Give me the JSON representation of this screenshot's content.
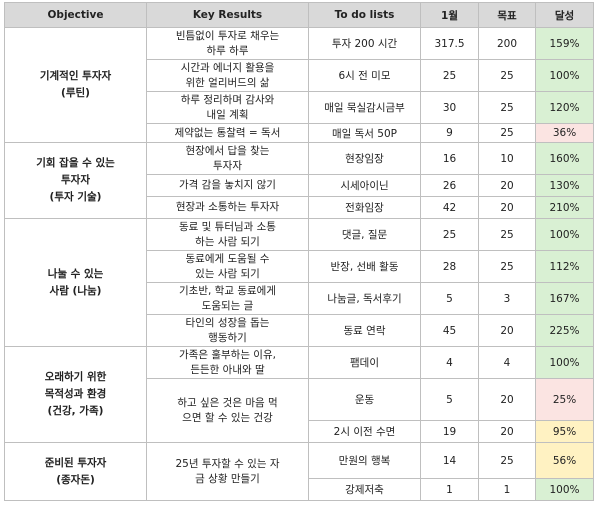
{
  "headers": [
    "Objective",
    "Key Results",
    "To do lists",
    "1월",
    "목표",
    "달성"
  ],
  "groups": [
    {
      "objective": [
        "기계적인 투자자",
        "(루틴)"
      ],
      "items": [
        {
          "kr": [
            "빈틈없이 투자로 채우는",
            "하루 하루"
          ],
          "todo": "투자 200 시간",
          "month": "317.5",
          "goal": "200",
          "rate": "159%",
          "tone": "g"
        },
        {
          "kr": [
            "시간과 에너지 활용을",
            "위한 얼리버드의 삶"
          ],
          "todo": "6시 전 미모",
          "month": "25",
          "goal": "25",
          "rate": "100%",
          "tone": "g"
        },
        {
          "kr": [
            "하루 정리하며 감사와",
            "내일 계획"
          ],
          "todo": "매일 묵실감시금부",
          "month": "30",
          "goal": "25",
          "rate": "120%",
          "tone": "g"
        },
        {
          "kr": [
            "제약없는 통찰력 = 독서"
          ],
          "todo": "매일 독서 50P",
          "month": "9",
          "goal": "25",
          "rate": "36%",
          "tone": "p"
        }
      ]
    },
    {
      "objective": [
        "기회 잡을 수 있는",
        "투자자",
        "(투자 기술)"
      ],
      "items": [
        {
          "kr": [
            "현장에서 답을 찾는",
            "투자자"
          ],
          "todo": "현장임장",
          "month": "16",
          "goal": "10",
          "rate": "160%",
          "tone": "g"
        },
        {
          "kr": [
            "가격 감을 놓치지 않기"
          ],
          "todo": "시세아이닌",
          "month": "26",
          "goal": "20",
          "rate": "130%",
          "tone": "g"
        },
        {
          "kr": [
            "현장과 소통하는 투자자"
          ],
          "todo": "전화임장",
          "month": "42",
          "goal": "20",
          "rate": "210%",
          "tone": "g"
        }
      ]
    },
    {
      "objective": [
        "나눌 수 있는",
        "사람 (나눔)"
      ],
      "items": [
        {
          "kr": [
            "동료 및 튜터님과 소통",
            "하는 사람 되기"
          ],
          "todo": "댓글, 질문",
          "month": "25",
          "goal": "25",
          "rate": "100%",
          "tone": "g"
        },
        {
          "kr": [
            "동료에게 도움될 수",
            "있는 사람 되기"
          ],
          "todo": "반장, 선배 활동",
          "month": "28",
          "goal": "25",
          "rate": "112%",
          "tone": "g"
        },
        {
          "kr": [
            "기초반, 학교 동료에게",
            "도움되는 글"
          ],
          "todo": "나눔글, 독서후기",
          "month": "5",
          "goal": "3",
          "rate": "167%",
          "tone": "g"
        },
        {
          "kr": [
            "타인의 성장을 돕는",
            "행동하기"
          ],
          "todo": "동료 연락",
          "month": "45",
          "goal": "20",
          "rate": "225%",
          "tone": "g"
        }
      ]
    },
    {
      "objective": [
        "오래하기 위한",
        "목적성과 환경",
        "(건강, 가족)"
      ],
      "items": [
        {
          "kr": [
            "가족은 훌부하는 이유,",
            "든든한 아내와 딸"
          ],
          "todo": "팸데이",
          "month": "4",
          "goal": "4",
          "rate": "100%",
          "tone": "g"
        },
        {
          "kr": [
            "하고 싶은 것은 마음 먹",
            "으면 할 수 있는 건강"
          ],
          "todo": "운동",
          "month": "5",
          "goal": "20",
          "rate": "25%",
          "tone": "p"
        },
        {
          "kr": [],
          "todo": "2시 이전 수면",
          "month": "19",
          "goal": "20",
          "rate": "95%",
          "tone": "y"
        }
      ]
    },
    {
      "objective": [
        "준비된 투자자",
        "(종자돈)"
      ],
      "items": [
        {
          "kr": [
            "25년 투자할 수 있는 자",
            "금 상황 만들기"
          ],
          "todo": "만원의 행복",
          "month": "14",
          "goal": "25",
          "rate": "56%",
          "tone": "y"
        },
        {
          "kr": [],
          "todo": "강제저축",
          "month": "1",
          "goal": "1",
          "rate": "100%",
          "tone": "g"
        }
      ]
    }
  ]
}
